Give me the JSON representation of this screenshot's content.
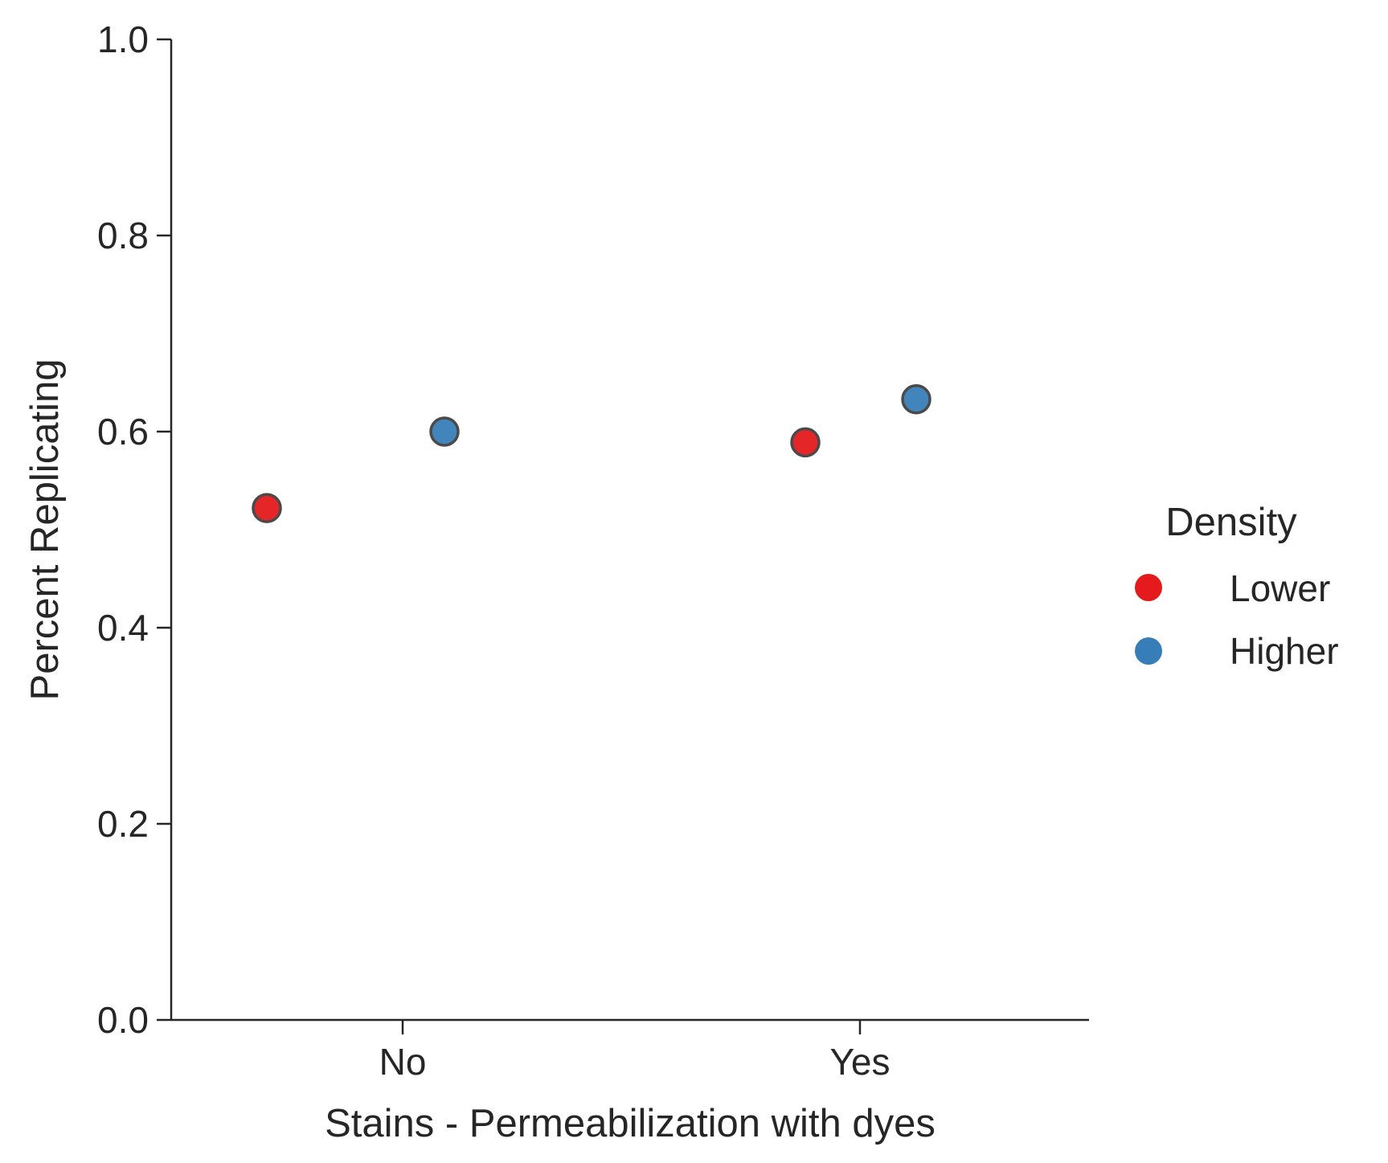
{
  "chart_data": {
    "type": "scatter",
    "xlabel": "Stains - Permeabilization with dyes",
    "ylabel": "Percent Replicating",
    "categories": [
      "No",
      "Yes"
    ],
    "ylim": [
      0.0,
      1.0
    ],
    "yticks": [
      "0.0",
      "0.2",
      "0.4",
      "0.6",
      "0.8",
      "1.0"
    ],
    "grid": false,
    "legend": {
      "title": "Density",
      "placement": "right",
      "entries": [
        "Lower",
        "Higher"
      ]
    },
    "series": [
      {
        "name": "Lower",
        "color": "#e41a1c",
        "values": [
          0.522,
          0.589
        ]
      },
      {
        "name": "Higher",
        "color": "#377eb8",
        "values": [
          0.6,
          0.633
        ]
      }
    ]
  }
}
